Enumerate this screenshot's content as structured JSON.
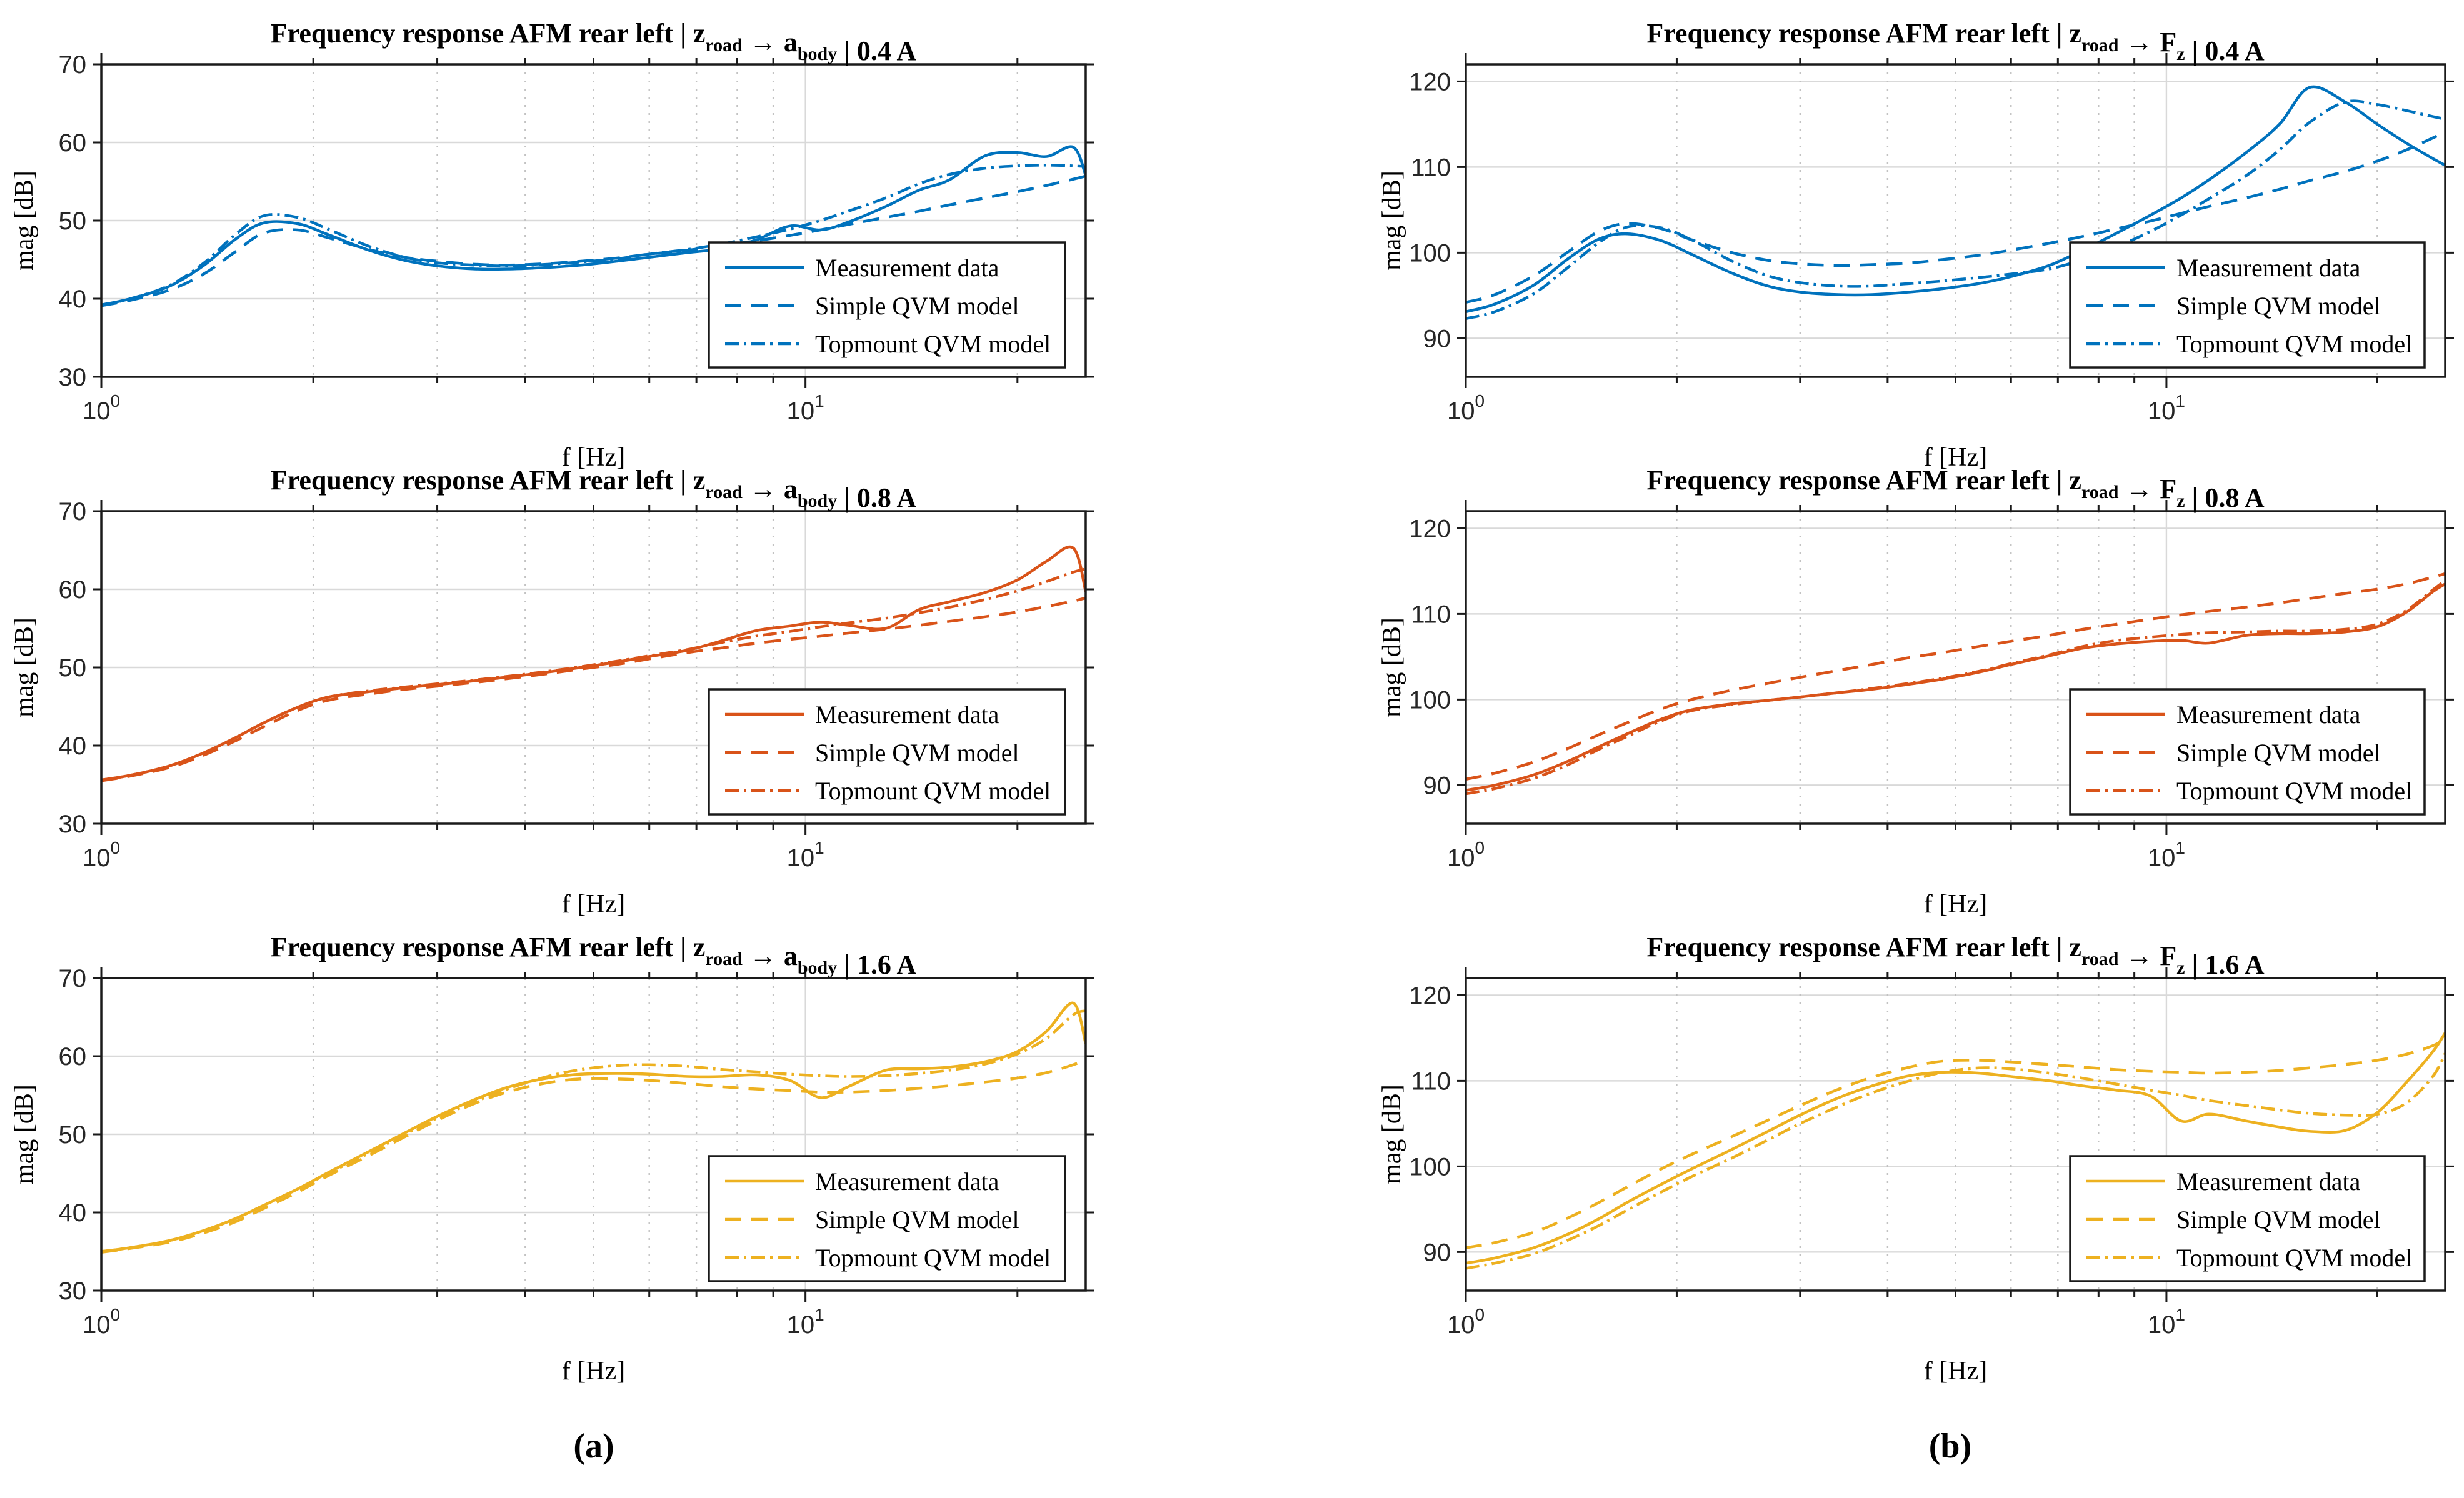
{
  "figure": {
    "background": "#ffffff",
    "captions": [
      {
        "label": "(a)"
      },
      {
        "label": "(b)"
      }
    ]
  },
  "chart_data": {
    "type": "line",
    "xscale": "log",
    "grid": "on",
    "legend_position": "lower-right",
    "legend_labels": [
      "Measurement data",
      "Simple QVM model",
      "Topmount QVM model"
    ],
    "line_styles": [
      "solid",
      "dashed",
      "dashdot"
    ],
    "x_axis": {
      "label": "f [Hz]",
      "range_hz": [
        1,
        25
      ],
      "ticks": [
        {
          "value": 1,
          "base": "10",
          "exp": "0"
        },
        {
          "value": 10,
          "base": "10",
          "exp": "1"
        }
      ],
      "minor_grid_hz": [
        2,
        3,
        4,
        5,
        6,
        7,
        8,
        9,
        20
      ],
      "major_grid_hz": [
        10
      ]
    },
    "y_axis_label": "mag [dB]",
    "frequencies_hz": [
      1,
      1.1,
      1.25,
      1.4,
      1.55,
      1.7,
      1.9,
      2.1,
      2.4,
      2.7,
      3,
      3.4,
      3.8,
      4.3,
      4.8,
      5.4,
      6,
      6.8,
      7.6,
      8.5,
      9.5,
      10.5,
      11.5,
      13,
      14.5,
      16,
      18,
      20,
      22,
      24,
      25
    ],
    "plots": [
      {
        "id": "a-0.4A",
        "title": "Frequency response AFM rear left | z_road → a_body | 0.4 A",
        "title_parts": [
          {
            "text": "Frequency response AFM rear left | z"
          },
          {
            "text": "road",
            "sub": true
          },
          {
            "text": " → a"
          },
          {
            "text": "body",
            "sub": true
          },
          {
            "text": " | 0.4 A"
          }
        ],
        "color": "#0072BD",
        "ylim": [
          30,
          70
        ],
        "yticks": [
          30,
          40,
          50,
          60,
          70
        ],
        "series": [
          {
            "name": "Measurement data",
            "style": "solid",
            "mag_db": [
              39.2,
              40.0,
              41.6,
              44.3,
              47.6,
              49.7,
              49.6,
              48.2,
              46.2,
              44.9,
              44.2,
              43.8,
              43.8,
              44.0,
              44.3,
              44.8,
              45.3,
              45.9,
              46.4,
              47.5,
              49.3,
              48.8,
              49.8,
              51.8,
              53.9,
              55.2,
              58.3,
              58.7,
              58.2,
              59.4,
              55.8
            ]
          },
          {
            "name": "Simple QVM model",
            "style": "dashed",
            "mag_db": [
              39.1,
              39.8,
              41.1,
              43.2,
              46.0,
              48.4,
              48.8,
              47.8,
              46.3,
              45.3,
              44.8,
              44.4,
              44.3,
              44.5,
              44.8,
              45.2,
              45.7,
              46.2,
              46.8,
              47.4,
              48.1,
              48.8,
              49.5,
              50.4,
              51.2,
              52.0,
              52.9,
              53.7,
              54.5,
              55.3,
              55.7
            ]
          },
          {
            "name": "Topmount QVM model",
            "style": "dashdot",
            "mag_db": [
              39.2,
              40.0,
              41.7,
              44.6,
              48.2,
              50.6,
              50.4,
              48.9,
              46.7,
              45.3,
              44.6,
              44.3,
              44.2,
              44.4,
              44.7,
              45.1,
              45.7,
              46.3,
              47.0,
              47.9,
              48.9,
              50.0,
              51.2,
              52.9,
              54.7,
              55.9,
              56.7,
              57.0,
              57.1,
              57.0,
              56.9
            ]
          }
        ]
      },
      {
        "id": "a-0.8A",
        "title": "Frequency response AFM rear left | z_road → a_body | 0.8 A",
        "title_parts": [
          {
            "text": "Frequency response AFM rear left | z"
          },
          {
            "text": "road",
            "sub": true
          },
          {
            "text": " → a"
          },
          {
            "text": "body",
            "sub": true
          },
          {
            "text": " | 0.8 A"
          }
        ],
        "color": "#D95319",
        "ylim": [
          30,
          70
        ],
        "yticks": [
          30,
          40,
          50,
          60,
          70
        ],
        "series": [
          {
            "name": "Measurement data",
            "style": "solid",
            "mag_db": [
              35.6,
              36.2,
              37.4,
              39.1,
              41.0,
              42.9,
              44.9,
              46.2,
              46.9,
              47.4,
              47.8,
              48.3,
              48.8,
              49.4,
              50.0,
              50.7,
              51.4,
              52.2,
              53.4,
              54.7,
              55.3,
              55.8,
              55.4,
              55.0,
              57.4,
              58.4,
              59.6,
              61.2,
              63.6,
              65.3,
              59.7
            ]
          },
          {
            "name": "Simple QVM model",
            "style": "dashed",
            "mag_db": [
              35.5,
              36.1,
              37.2,
              38.8,
              40.6,
              42.4,
              44.5,
              45.8,
              46.6,
              47.2,
              47.6,
              48.1,
              48.6,
              49.2,
              49.8,
              50.4,
              51.1,
              51.9,
              52.5,
              53.1,
              53.6,
              54.0,
              54.4,
              54.9,
              55.4,
              55.9,
              56.5,
              57.1,
              57.8,
              58.5,
              58.9
            ]
          },
          {
            "name": "Topmount QVM model",
            "style": "dashdot",
            "mag_db": [
              35.6,
              36.2,
              37.4,
              39.1,
              41.0,
              42.9,
              44.9,
              46.2,
              47.0,
              47.5,
              47.9,
              48.4,
              48.9,
              49.5,
              50.1,
              50.8,
              51.5,
              52.3,
              53.2,
              54.0,
              54.6,
              55.2,
              55.7,
              56.3,
              57.0,
              57.7,
              58.7,
              59.8,
              61.0,
              62.2,
              62.6
            ]
          }
        ]
      },
      {
        "id": "a-1.6A",
        "title": "Frequency response AFM rear left | z_road → a_body | 1.6 A",
        "title_parts": [
          {
            "text": "Frequency response AFM rear left | z"
          },
          {
            "text": "road",
            "sub": true
          },
          {
            "text": " → a"
          },
          {
            "text": "body",
            "sub": true
          },
          {
            "text": " | 1.6 A"
          }
        ],
        "color": "#EDB120",
        "ylim": [
          30,
          70
        ],
        "yticks": [
          30,
          40,
          50,
          60,
          70
        ],
        "series": [
          {
            "name": "Measurement data",
            "style": "solid",
            "mag_db": [
              35.0,
              35.5,
              36.4,
              37.7,
              39.2,
              40.9,
              43.0,
              45.1,
              47.8,
              50.2,
              52.3,
              54.5,
              56.1,
              57.2,
              57.7,
              57.8,
              57.7,
              57.4,
              57.4,
              57.6,
              56.9,
              54.7,
              56.1,
              58.2,
              58.4,
              58.6,
              59.3,
              60.6,
              63.2,
              66.8,
              61.6
            ]
          },
          {
            "name": "Simple QVM model",
            "style": "dashed",
            "mag_db": [
              34.9,
              35.4,
              36.2,
              37.4,
              38.8,
              40.5,
              42.6,
              44.7,
              47.3,
              49.7,
              51.8,
              54.0,
              55.5,
              56.6,
              57.1,
              57.1,
              56.9,
              56.5,
              56.1,
              55.8,
              55.6,
              55.4,
              55.4,
              55.6,
              55.9,
              56.2,
              56.7,
              57.2,
              57.9,
              58.9,
              59.6
            ]
          },
          {
            "name": "Topmount QVM model",
            "style": "dashdot",
            "mag_db": [
              35.0,
              35.5,
              36.4,
              37.7,
              39.2,
              40.9,
              43.0,
              45.0,
              47.6,
              50.0,
              52.1,
              54.2,
              55.9,
              57.4,
              58.3,
              58.8,
              58.9,
              58.7,
              58.3,
              58.0,
              57.7,
              57.5,
              57.4,
              57.5,
              57.8,
              58.2,
              59.0,
              60.3,
              62.3,
              65.3,
              65.8
            ]
          }
        ]
      },
      {
        "id": "b-0.4A",
        "title": "Frequency response AFM rear left | z_road → F_z | 0.4 A",
        "title_parts": [
          {
            "text": "Frequency response AFM rear left | z"
          },
          {
            "text": "road",
            "sub": true
          },
          {
            "text": " → F"
          },
          {
            "text": "z",
            "sub": true
          },
          {
            "text": " | 0.4 A"
          }
        ],
        "color": "#0072BD",
        "ylim": [
          85.5,
          122
        ],
        "yticks": [
          90,
          100,
          110,
          120
        ],
        "series": [
          {
            "name": "Measurement data",
            "style": "solid",
            "mag_db": [
              93.1,
              94.0,
              96.2,
              99.3,
              101.6,
              102.2,
              101.4,
              99.8,
              97.6,
              96.1,
              95.4,
              95.1,
              95.1,
              95.4,
              95.8,
              96.4,
              97.2,
              98.5,
              100.3,
              102.3,
              104.4,
              106.4,
              108.5,
              111.7,
              115.0,
              119.3,
              117.6,
              115.0,
              112.8,
              111.0,
              110.2
            ]
          },
          {
            "name": "Simple QVM model",
            "style": "dashed",
            "mag_db": [
              94.2,
              95.1,
              97.3,
              100.1,
              102.5,
              103.4,
              102.8,
              101.5,
              100.0,
              99.1,
              98.7,
              98.5,
              98.6,
              98.8,
              99.2,
              99.7,
              100.3,
              101.1,
              101.9,
              102.8,
              103.7,
              104.6,
              105.4,
              106.4,
              107.4,
              108.4,
              109.5,
              110.7,
              112.0,
              113.4,
              114.1
            ]
          },
          {
            "name": "Topmount QVM model",
            "style": "dashdot",
            "mag_db": [
              92.3,
              93.1,
              95.2,
              98.3,
              101.2,
              103.0,
              102.9,
              101.5,
              99.0,
              97.3,
              96.5,
              96.1,
              96.1,
              96.4,
              96.7,
              97.1,
              97.5,
              98.1,
              99.2,
              100.7,
              102.5,
              104.4,
              106.3,
              109.0,
              112.0,
              115.2,
              117.6,
              117.3,
              116.6,
              115.9,
              115.6
            ]
          }
        ]
      },
      {
        "id": "b-0.8A",
        "title": "Frequency response AFM rear left | z_road → F_z | 0.8 A",
        "title_parts": [
          {
            "text": "Frequency response AFM rear left | z"
          },
          {
            "text": "road",
            "sub": true
          },
          {
            "text": " → F"
          },
          {
            "text": "z",
            "sub": true
          },
          {
            "text": " | 0.8 A"
          }
        ],
        "color": "#D95319",
        "ylim": [
          85.5,
          122
        ],
        "yticks": [
          90,
          100,
          110,
          120
        ],
        "series": [
          {
            "name": "Measurement data",
            "style": "solid",
            "mag_db": [
              89.4,
              90.0,
              91.2,
              92.8,
              94.5,
              96.0,
              97.7,
              98.8,
              99.5,
              99.9,
              100.3,
              100.8,
              101.2,
              101.8,
              102.4,
              103.2,
              104.1,
              105.1,
              106.0,
              106.5,
              106.8,
              106.9,
              106.6,
              107.5,
              107.7,
              107.7,
              107.9,
              108.5,
              110.2,
              112.6,
              113.5
            ]
          },
          {
            "name": "Simple QVM model",
            "style": "dashed",
            "mag_db": [
              90.7,
              91.4,
              92.7,
              94.3,
              95.9,
              97.3,
              98.9,
              100.0,
              101.1,
              101.9,
              102.6,
              103.4,
              104.1,
              104.9,
              105.5,
              106.2,
              106.8,
              107.5,
              108.2,
              108.8,
              109.4,
              109.9,
              110.3,
              110.8,
              111.3,
              111.8,
              112.4,
              112.9,
              113.5,
              114.3,
              114.7
            ]
          },
          {
            "name": "Topmount QVM model",
            "style": "dashdot",
            "mag_db": [
              89.0,
              89.6,
              90.8,
              92.4,
              94.2,
              95.7,
              97.5,
              98.7,
              99.4,
              99.9,
              100.3,
              100.8,
              101.3,
              101.9,
              102.5,
              103.3,
              104.2,
              105.2,
              106.2,
              106.9,
              107.3,
              107.6,
              107.8,
              107.9,
              108.0,
              108.0,
              108.2,
              108.8,
              110.4,
              112.8,
              113.9
            ]
          }
        ]
      },
      {
        "id": "b-1.6A",
        "title": "Frequency response AFM rear left | z_road → F_z | 1.6 A",
        "title_parts": [
          {
            "text": "Frequency response AFM rear left | z"
          },
          {
            "text": "road",
            "sub": true
          },
          {
            "text": " → F"
          },
          {
            "text": "z",
            "sub": true
          },
          {
            "text": " | 1.6 A"
          }
        ],
        "color": "#EDB120",
        "ylim": [
          85.5,
          122
        ],
        "yticks": [
          90,
          100,
          110,
          120
        ],
        "series": [
          {
            "name": "Measurement data",
            "style": "solid",
            "mag_db": [
              88.7,
              89.3,
              90.5,
              92.1,
              93.9,
              95.8,
              97.9,
              99.7,
              102.0,
              104.1,
              106.0,
              108.0,
              109.4,
              110.6,
              111.0,
              110.9,
              110.5,
              110.0,
              109.4,
              108.9,
              108.2,
              105.3,
              106.1,
              105.3,
              104.6,
              104.1,
              104.2,
              106.3,
              109.8,
              113.4,
              115.6
            ]
          },
          {
            "name": "Simple QVM model",
            "style": "dashed",
            "mag_db": [
              90.5,
              91.1,
              92.3,
              94.0,
              95.8,
              97.6,
              99.7,
              101.4,
              103.5,
              105.4,
              107.1,
              109.0,
              110.4,
              111.6,
              112.3,
              112.4,
              112.2,
              111.9,
              111.6,
              111.3,
              111.1,
              111.0,
              110.9,
              111.0,
              111.2,
              111.5,
              111.9,
              112.4,
              113.1,
              114.1,
              114.9
            ]
          },
          {
            "name": "Topmount QVM model",
            "style": "dashdot",
            "mag_db": [
              88.1,
              88.7,
              89.8,
              91.4,
              93.1,
              94.9,
              97.0,
              98.8,
              101.0,
              103.1,
              105.0,
              107.0,
              108.6,
              110.0,
              111.0,
              111.5,
              111.4,
              110.9,
              110.3,
              109.6,
              108.9,
              108.3,
              107.7,
              107.1,
              106.6,
              106.2,
              106.0,
              106.1,
              107.4,
              110.5,
              113.2
            ]
          }
        ]
      }
    ]
  },
  "style_colors": {
    "axes_frame": "#1a1a1a",
    "tick_label": "#262626",
    "grid_major": "#d9d9d9",
    "grid_minor_dotted": "#c2c2c2",
    "legend_border": "#1a1a1a",
    "legend_background": "#ffffff"
  }
}
